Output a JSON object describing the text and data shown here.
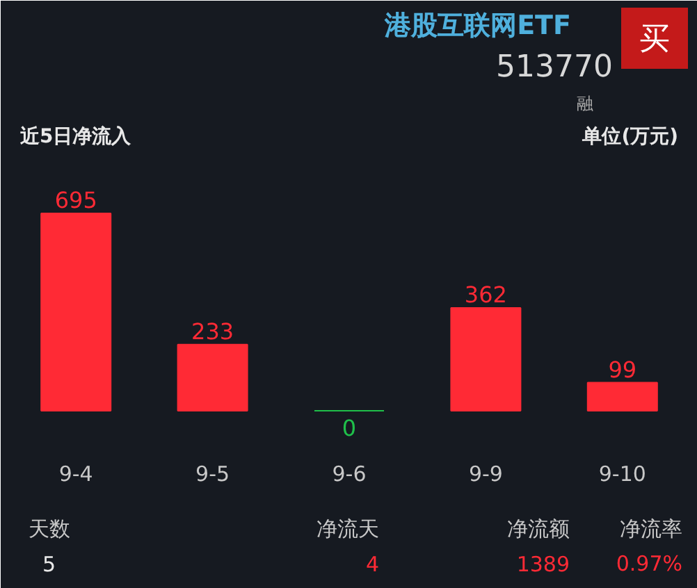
{
  "chart_data": {
    "type": "bar",
    "title": "近5日净流入",
    "categories": [
      "9-4",
      "9-5",
      "9-6",
      "9-9",
      "9-10"
    ],
    "values": [
      695,
      233,
      0,
      362,
      99
    ],
    "colors": [
      "#ff2a35",
      "#ff2a35",
      "#1fbf4a",
      "#ff2a35",
      "#ff2a35"
    ],
    "data_labels": true,
    "annotations": [
      "单位(万元)",
      "港股互联网ETF",
      "513770",
      "买",
      "融",
      "天数",
      "5",
      "净流天",
      "4",
      "净流额",
      "1389",
      "净流率",
      "0.97%"
    ]
  }
}
